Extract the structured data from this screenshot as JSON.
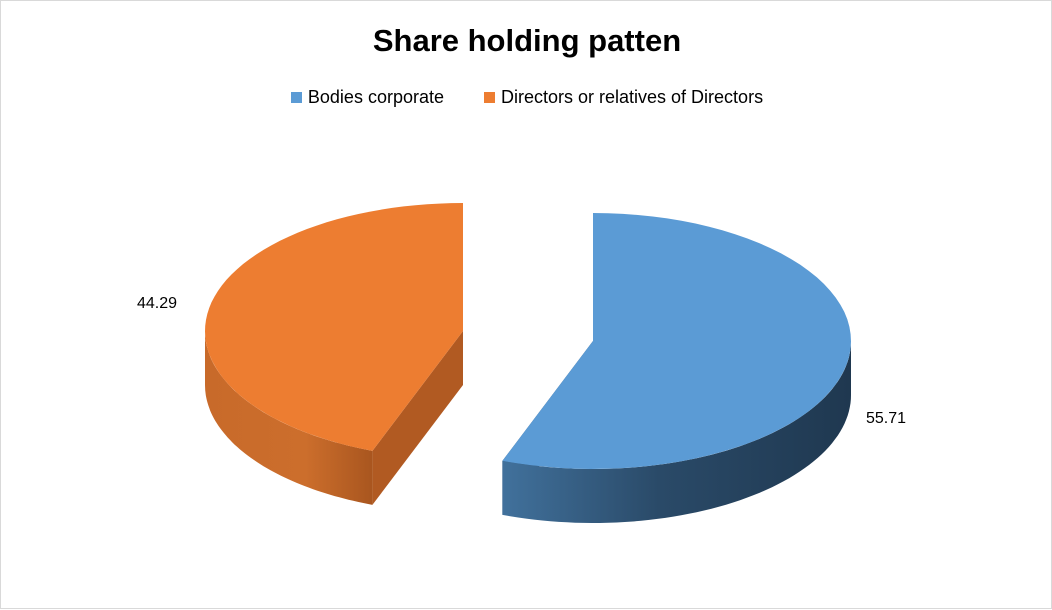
{
  "chart_data": {
    "type": "pie",
    "style": "3d-exploded",
    "title": "Share holding patten",
    "legend_position": "top",
    "categories": [
      "Bodies corporate",
      "Directors or relatives of Directors"
    ],
    "values": [
      55.71,
      44.29
    ],
    "data_labels": [
      "55.71",
      "44.29"
    ],
    "colors": [
      "#5b9bd5",
      "#ed7d31"
    ],
    "side_colors": [
      "#2e4d6b",
      "#b15a22"
    ]
  }
}
